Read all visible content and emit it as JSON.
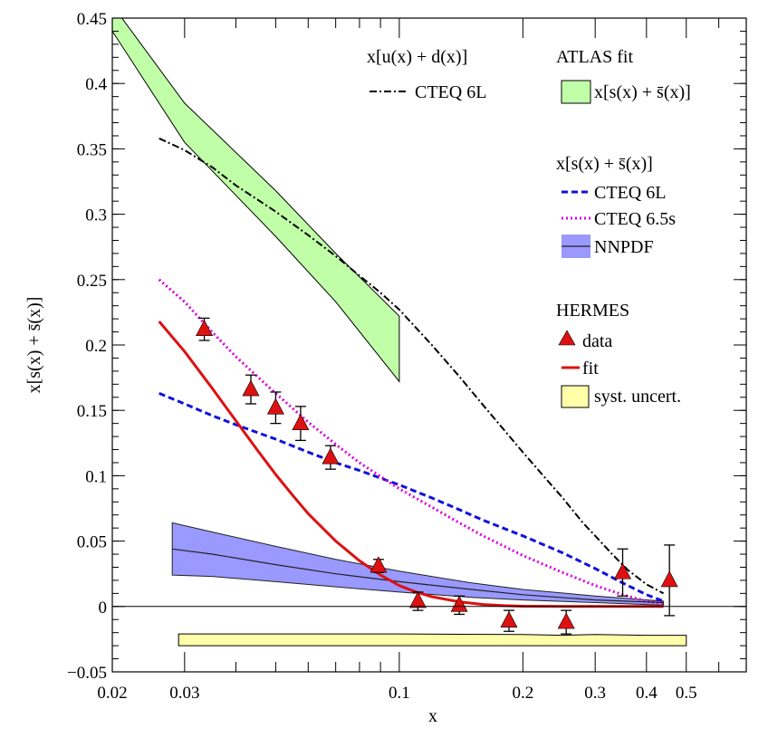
{
  "chart_data": {
    "type": "line",
    "xscale": "log",
    "xlim": [
      0.02,
      0.7
    ],
    "ylim": [
      -0.05,
      0.45
    ],
    "xlabel": "x",
    "ylabel": "x[s(x) + s̄(x)]",
    "x_ticks": [
      {
        "value": 0.02,
        "label": "0.02"
      },
      {
        "value": 0.03,
        "label": "0.03"
      },
      {
        "value": 0.1,
        "label": "0.1"
      },
      {
        "value": 0.2,
        "label": "0.2"
      },
      {
        "value": 0.3,
        "label": "0.3"
      },
      {
        "value": 0.4,
        "label": "0.4"
      },
      {
        "value": 0.5,
        "label": "0.5"
      }
    ],
    "y_ticks": [
      {
        "value": -0.05,
        "label": "−0.05"
      },
      {
        "value": 0,
        "label": "0"
      },
      {
        "value": 0.05,
        "label": "0.05"
      },
      {
        "value": 0.1,
        "label": "0.1"
      },
      {
        "value": 0.15,
        "label": "0.15"
      },
      {
        "value": 0.2,
        "label": "0.2"
      },
      {
        "value": 0.25,
        "label": "0.25"
      },
      {
        "value": 0.3,
        "label": "0.3"
      },
      {
        "value": 0.35,
        "label": "0.35"
      },
      {
        "value": 0.4,
        "label": "0.4"
      },
      {
        "value": 0.45,
        "label": "0.45"
      }
    ],
    "colors": {
      "atlas_band": "#c0ffa8",
      "nnpdf_band": "#9999ff",
      "cteq6l_ud": "#000000",
      "cteq6l_s": "#1010dd",
      "cteq65s": "#dd00dd",
      "hermes_fit": "#dd1111",
      "hermes_data": "#dd1111",
      "syst": "#ffffaa"
    },
    "series": [
      {
        "name": "x[u(x)+d(x)] CTEQ 6L",
        "style": "dashdot",
        "x": [
          0.026,
          0.03,
          0.035,
          0.04,
          0.05,
          0.06,
          0.07,
          0.08,
          0.09,
          0.1,
          0.12,
          0.14,
          0.16,
          0.18,
          0.2,
          0.22,
          0.25,
          0.28,
          0.3,
          0.33,
          0.36,
          0.4,
          0.44
        ],
        "y": [
          0.358,
          0.349,
          0.336,
          0.322,
          0.302,
          0.284,
          0.268,
          0.253,
          0.24,
          0.227,
          0.2,
          0.176,
          0.154,
          0.135,
          0.118,
          0.103,
          0.083,
          0.064,
          0.054,
          0.04,
          0.028,
          0.017,
          0.01
        ]
      },
      {
        "name": "x[s(x)+s̄(x)] CTEQ 6L",
        "style": "dashed",
        "x": [
          0.026,
          0.03,
          0.035,
          0.04,
          0.05,
          0.06,
          0.07,
          0.08,
          0.1,
          0.12,
          0.14,
          0.16,
          0.2,
          0.25,
          0.3,
          0.35,
          0.4,
          0.44
        ],
        "y": [
          0.163,
          0.155,
          0.146,
          0.139,
          0.128,
          0.118,
          0.11,
          0.104,
          0.093,
          0.083,
          0.074,
          0.066,
          0.054,
          0.041,
          0.029,
          0.018,
          0.009,
          0.004
        ]
      },
      {
        "name": "x[s(x)+s̄(x)] CTEQ 6.5s",
        "style": "dotted",
        "x": [
          0.026,
          0.03,
          0.035,
          0.04,
          0.05,
          0.06,
          0.07,
          0.08,
          0.1,
          0.12,
          0.14,
          0.16,
          0.2,
          0.25,
          0.3,
          0.35,
          0.4,
          0.44
        ],
        "y": [
          0.25,
          0.233,
          0.21,
          0.191,
          0.163,
          0.141,
          0.124,
          0.11,
          0.09,
          0.076,
          0.064,
          0.054,
          0.039,
          0.026,
          0.016,
          0.009,
          0.004,
          0.002
        ]
      },
      {
        "name": "NNPDF central",
        "style": "solid-thin",
        "x": [
          0.028,
          0.035,
          0.05,
          0.07,
          0.1,
          0.15,
          0.2,
          0.3,
          0.44
        ],
        "y": [
          0.044,
          0.04,
          0.032,
          0.025,
          0.019,
          0.013,
          0.009,
          0.005,
          0.003
        ]
      },
      {
        "name": "HERMES fit",
        "style": "solid",
        "x": [
          0.026,
          0.03,
          0.035,
          0.04,
          0.045,
          0.05,
          0.055,
          0.06,
          0.07,
          0.08,
          0.09,
          0.1,
          0.11,
          0.12,
          0.14,
          0.16,
          0.18,
          0.2,
          0.25,
          0.3,
          0.35,
          0.44
        ],
        "y": [
          0.218,
          0.195,
          0.167,
          0.142,
          0.12,
          0.101,
          0.085,
          0.071,
          0.05,
          0.035,
          0.024,
          0.016,
          0.011,
          0.0075,
          0.0035,
          0.0015,
          0.0006,
          0.0002,
          0,
          0,
          0,
          0
        ]
      }
    ],
    "bands": [
      {
        "name": "ATLAS fit",
        "x": [
          0.02,
          0.03,
          0.05,
          0.07,
          0.1
        ],
        "upper": [
          0.46,
          0.385,
          0.318,
          0.27,
          0.222
        ],
        "lower": [
          0.44,
          0.355,
          0.283,
          0.233,
          0.172
        ]
      },
      {
        "name": "NNPDF",
        "x": [
          0.028,
          0.035,
          0.05,
          0.07,
          0.1,
          0.15,
          0.2,
          0.3,
          0.44
        ],
        "upper": [
          0.064,
          0.057,
          0.046,
          0.036,
          0.027,
          0.018,
          0.013,
          0.008,
          0.004
        ],
        "lower": [
          0.024,
          0.023,
          0.019,
          0.015,
          0.011,
          0.007,
          0.005,
          0.003,
          0.001
        ]
      },
      {
        "name": "syst. uncert.",
        "x": [
          0.029,
          0.1,
          0.2,
          0.25,
          0.3,
          0.4,
          0.5
        ],
        "upper": [
          -0.021,
          -0.021,
          -0.0215,
          -0.022,
          -0.0215,
          -0.022,
          -0.022
        ],
        "lower": [
          -0.03,
          -0.03,
          -0.03,
          -0.03,
          -0.03,
          -0.03,
          -0.03
        ]
      }
    ],
    "data_points": {
      "name": "HERMES data",
      "x": [
        0.0335,
        0.0435,
        0.05,
        0.0575,
        0.068,
        0.089,
        0.111,
        0.14,
        0.185,
        0.255,
        0.35,
        0.455
      ],
      "y": [
        0.212,
        0.166,
        0.152,
        0.14,
        0.114,
        0.031,
        0.004,
        0.001,
        -0.011,
        -0.012,
        0.026,
        0.02
      ],
      "yerr": [
        0.0085,
        0.011,
        0.012,
        0.013,
        0.009,
        0.005,
        0.007,
        0.007,
        0.008,
        0.009,
        0.018,
        0.027
      ]
    },
    "legend": {
      "ud_header": "x[u(x) + d(x)]",
      "ud_cteq": "CTEQ 6L",
      "atlas_header": "ATLAS fit",
      "atlas_entry": "x[s(x) + s̄(x)]",
      "s_header": "x[s(x) + s̄(x)]",
      "s_cteq6l": "CTEQ 6L",
      "s_cteq65s": "CTEQ 6.5s",
      "s_nnpdf": "NNPDF",
      "hermes_header": "HERMES",
      "hermes_data": "data",
      "hermes_fit": "fit",
      "hermes_syst": "syst. uncert."
    }
  }
}
